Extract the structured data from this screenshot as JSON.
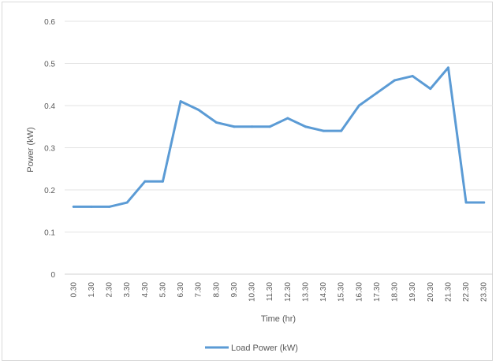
{
  "chart_data": {
    "type": "line",
    "title": "",
    "xlabel": "Time (hr)",
    "ylabel": "Power (kW)",
    "ylim": [
      0,
      0.6
    ],
    "yticks": [
      "0",
      "0.1",
      "0.2",
      "0.3",
      "0.4",
      "0.5",
      "0.6"
    ],
    "categories": [
      "0.30",
      "1.30",
      "2.30",
      "3.30",
      "4.30",
      "5.30",
      "6.30",
      "7.30",
      "8.30",
      "9.30",
      "10.30",
      "11.30",
      "12.30",
      "13.30",
      "14.30",
      "15.30",
      "16.30",
      "17.30",
      "18.30",
      "19.30",
      "20.30",
      "21.30",
      "22.30",
      "23.30"
    ],
    "grid": true,
    "legend_position": "bottom",
    "series": [
      {
        "name": "Load Power (kW)",
        "color": "#5b9bd5",
        "values": [
          0.16,
          0.16,
          0.16,
          0.17,
          0.22,
          0.22,
          0.41,
          0.39,
          0.36,
          0.35,
          0.35,
          0.35,
          0.37,
          0.35,
          0.34,
          0.34,
          0.4,
          0.43,
          0.46,
          0.47,
          0.44,
          0.49,
          0.17,
          0.17
        ]
      }
    ]
  }
}
